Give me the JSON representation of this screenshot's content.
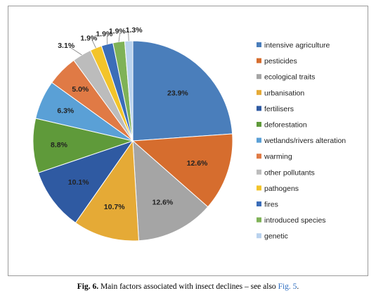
{
  "chart_data": {
    "type": "pie",
    "categories": [
      "intensive agriculture",
      "pesticides",
      "ecological traits",
      "urbanisation",
      "fertilisers",
      "deforestation",
      "wetlands/rivers alteration",
      "warming",
      "other pollutants",
      "pathogens",
      "fires",
      "introduced species",
      "genetic"
    ],
    "values": [
      23.9,
      12.6,
      12.6,
      10.7,
      10.1,
      8.8,
      6.3,
      5.0,
      3.1,
      1.9,
      1.9,
      1.9,
      1.3
    ],
    "labels": [
      "23.9%",
      "12.6%",
      "12.6%",
      "10.7%",
      "10.1%",
      "8.8%",
      "6.3%",
      "5.0%",
      "3.1%",
      "1.9%",
      "1.9%",
      "1.9%",
      "1.3%"
    ],
    "colors": [
      "#4a7ebb",
      "#d66d2e",
      "#a5a5a5",
      "#e5aa36",
      "#2f5aa2",
      "#5f9a3a",
      "#5aa0d6",
      "#e07a45",
      "#bcbcbc",
      "#f3c42a",
      "#3b6db8",
      "#7fb257",
      "#b9d2ee"
    ],
    "legend_position": "right",
    "start_angle": "top, clockwise"
  },
  "caption": {
    "label": "Fig. 6.",
    "text": " Main factors associated with insect declines – see also ",
    "link": "Fig. 5",
    "end": "."
  }
}
